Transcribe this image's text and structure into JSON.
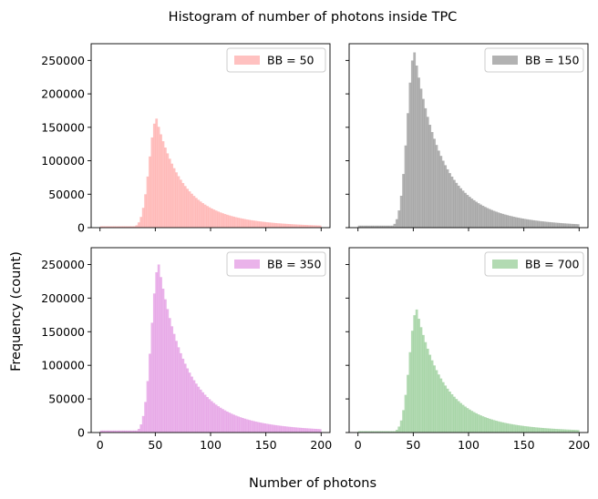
{
  "figure": {
    "suptitle": "Histogram of number of photons inside TPC",
    "supxlabel": "Number of photons",
    "supylabel": "Frequency (count)"
  },
  "chart_data": {
    "type": "bar",
    "layout": "2x2 grid, shared x and y axes",
    "xlim": [
      -8,
      208
    ],
    "ylim": [
      0,
      275000
    ],
    "x_ticks": [
      0,
      50,
      100,
      150,
      200
    ],
    "y_ticks": [
      0,
      50000,
      100000,
      150000,
      200000,
      250000
    ],
    "bin_width": 2,
    "bin_edges_range": [
      0,
      200
    ],
    "legend_placement": "upper right",
    "grid": false,
    "panels": [
      {
        "label": "BB = 50",
        "color": "#ff9896",
        "peak_bin_center": 51,
        "peak_value": 163000,
        "shape": {
          "rise_start": 32,
          "rise_sigma": 6.5,
          "tail_decay": 22,
          "floor": 2000,
          "secondary_scale": 0.22,
          "secondary_decay": 60
        }
      },
      {
        "label": "BB = 150",
        "color": "#7f7f7f",
        "peak_bin_center": 51,
        "peak_value": 262000,
        "shape": {
          "rise_start": 32,
          "rise_sigma": 6.5,
          "tail_decay": 22,
          "floor": 3000,
          "secondary_scale": 0.22,
          "secondary_decay": 60
        }
      },
      {
        "label": "BB = 350",
        "color": "#dc80dc",
        "peak_bin_center": 53,
        "peak_value": 250000,
        "shape": {
          "rise_start": 32,
          "rise_sigma": 6.5,
          "tail_decay": 22,
          "floor": 3000,
          "secondary_scale": 0.22,
          "secondary_decay": 60
        }
      },
      {
        "label": "BB = 700",
        "color": "#7fc17f",
        "peak_bin_center": 53,
        "peak_value": 183000,
        "shape": {
          "rise_start": 32,
          "rise_sigma": 6.5,
          "tail_decay": 22,
          "floor": 2000,
          "secondary_scale": 0.22,
          "secondary_decay": 60
        }
      }
    ]
  }
}
